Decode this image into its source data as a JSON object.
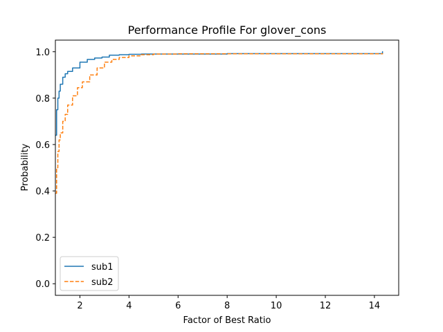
{
  "chart_data": {
    "type": "line",
    "title": "Performance Profile For glover_cons",
    "xlabel": "Factor of Best Ratio",
    "ylabel": "Probability",
    "xlim": [
      1.0,
      14.99
    ],
    "ylim": [
      -0.05,
      1.05
    ],
    "x_ticks": [
      2,
      4,
      6,
      8,
      10,
      12,
      14
    ],
    "x_tick_labels": [
      "2",
      "4",
      "6",
      "8",
      "10",
      "12",
      "14"
    ],
    "y_ticks": [
      0.0,
      0.2,
      0.4,
      0.6,
      0.8,
      1.0
    ],
    "y_tick_labels": [
      "0.0",
      "0.2",
      "0.4",
      "0.6",
      "0.8",
      "1.0"
    ],
    "grid": false,
    "legend_position": "lower-left",
    "series": [
      {
        "name": "sub1",
        "color": "#1f77b4",
        "dash": "solid",
        "x": [
          1.0,
          1.05,
          1.1,
          1.15,
          1.2,
          1.3,
          1.4,
          1.5,
          1.7,
          2.0,
          2.3,
          2.6,
          2.9,
          3.2,
          3.6,
          4.0,
          4.5,
          5.0,
          6.0,
          8.0,
          10.0,
          12.0,
          14.0,
          14.3,
          14.33,
          14.35
        ],
        "y": [
          0.64,
          0.75,
          0.8,
          0.83,
          0.86,
          0.89,
          0.905,
          0.915,
          0.93,
          0.955,
          0.967,
          0.973,
          0.977,
          0.985,
          0.987,
          0.989,
          0.99,
          0.99,
          0.99,
          0.992,
          0.992,
          0.992,
          0.992,
          0.992,
          1.0,
          1.0
        ]
      },
      {
        "name": "sub2",
        "color": "#ff7f0e",
        "dash": "dashed",
        "x": [
          1.0,
          1.05,
          1.1,
          1.15,
          1.2,
          1.3,
          1.4,
          1.5,
          1.7,
          1.9,
          2.1,
          2.4,
          2.7,
          3.0,
          3.3,
          3.6,
          4.0,
          4.5,
          5.0,
          6.0,
          8.0,
          10.0,
          12.0,
          14.0,
          14.35
        ],
        "y": [
          0.39,
          0.5,
          0.57,
          0.62,
          0.65,
          0.7,
          0.73,
          0.77,
          0.81,
          0.845,
          0.87,
          0.9,
          0.93,
          0.955,
          0.967,
          0.975,
          0.982,
          0.987,
          0.99,
          0.991,
          0.991,
          0.991,
          0.991,
          0.991,
          0.991
        ]
      }
    ]
  }
}
